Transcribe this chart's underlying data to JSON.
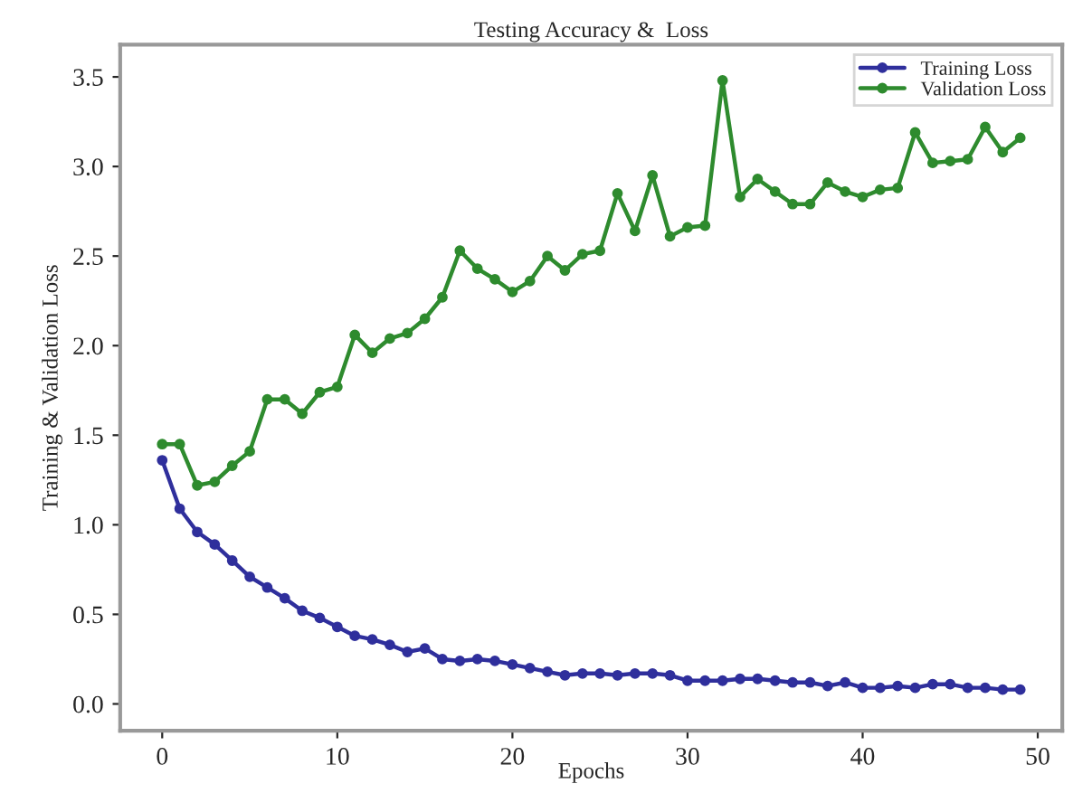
{
  "chart_data": {
    "type": "line",
    "title": "Testing Accuracy &  Loss",
    "xlabel": "Epochs",
    "ylabel": "Training & Validation Loss",
    "x": [
      0,
      1,
      2,
      3,
      4,
      5,
      6,
      7,
      8,
      9,
      10,
      11,
      12,
      13,
      14,
      15,
      16,
      17,
      18,
      19,
      20,
      21,
      22,
      23,
      24,
      25,
      26,
      27,
      28,
      29,
      30,
      31,
      32,
      33,
      34,
      35,
      36,
      37,
      38,
      39,
      40,
      41,
      42,
      43,
      44,
      45,
      46,
      47,
      48,
      49
    ],
    "series": [
      {
        "name": "Training Loss",
        "color": "#2f2f9c",
        "values": [
          1.36,
          1.09,
          0.96,
          0.89,
          0.8,
          0.71,
          0.65,
          0.59,
          0.52,
          0.48,
          0.43,
          0.38,
          0.36,
          0.33,
          0.29,
          0.31,
          0.25,
          0.24,
          0.25,
          0.24,
          0.22,
          0.2,
          0.18,
          0.16,
          0.17,
          0.17,
          0.16,
          0.17,
          0.17,
          0.16,
          0.13,
          0.13,
          0.13,
          0.14,
          0.14,
          0.13,
          0.12,
          0.12,
          0.1,
          0.12,
          0.09,
          0.09,
          0.1,
          0.09,
          0.11,
          0.11,
          0.09,
          0.09,
          0.08,
          0.08
        ]
      },
      {
        "name": "Validation Loss",
        "color": "#2e8b2e",
        "values": [
          1.45,
          1.45,
          1.22,
          1.24,
          1.33,
          1.41,
          1.7,
          1.7,
          1.62,
          1.74,
          1.77,
          2.06,
          1.96,
          2.04,
          2.07,
          2.15,
          2.27,
          2.53,
          2.43,
          2.37,
          2.3,
          2.36,
          2.5,
          2.42,
          2.51,
          2.53,
          2.85,
          2.64,
          2.95,
          2.61,
          2.66,
          2.67,
          3.48,
          2.83,
          2.93,
          2.86,
          2.79,
          2.79,
          2.91,
          2.86,
          2.83,
          2.87,
          2.88,
          3.19,
          3.02,
          3.03,
          3.04,
          3.22,
          3.08,
          3.16
        ]
      }
    ],
    "xlim": [
      -2.4,
      51.4
    ],
    "ylim": [
      -0.15,
      3.68
    ],
    "xticks": [
      0,
      10,
      20,
      30,
      40,
      50
    ],
    "yticks": [
      {
        "value": 0,
        "label": "0.0"
      },
      0.5,
      {
        "value": 1,
        "label": "1.0"
      },
      1.5,
      {
        "value": 2,
        "label": "2.0"
      },
      2.5,
      {
        "value": 3,
        "label": "3.0"
      },
      3.5
    ],
    "grid": false,
    "legend": "top right",
    "marker": "circle",
    "line_style": "solid"
  }
}
